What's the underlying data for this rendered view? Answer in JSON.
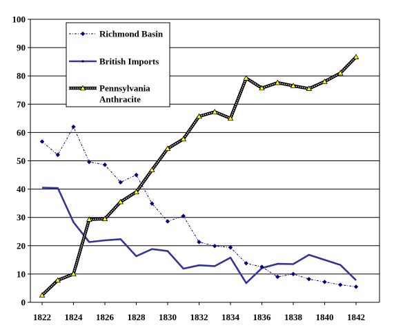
{
  "chart_data": {
    "type": "line",
    "title": "",
    "xlabel": "",
    "ylabel": "",
    "xlim": [
      1822,
      1842
    ],
    "ylim": [
      0,
      100
    ],
    "y_ticks": [
      0,
      10,
      20,
      30,
      40,
      50,
      60,
      70,
      80,
      90,
      100
    ],
    "y_tick_labels": [
      "0",
      "10",
      "20",
      "30",
      "40",
      "50",
      "60",
      "70",
      "80",
      "90",
      "100"
    ],
    "x_ticks": [
      1822,
      1824,
      1826,
      1828,
      1830,
      1832,
      1834,
      1836,
      1838,
      1840,
      1842
    ],
    "x_tick_labels": [
      "1822",
      "1824",
      "1826",
      "1828",
      "1830",
      "1832",
      "1834",
      "1836",
      "1838",
      "1840",
      "1842"
    ],
    "grid": "horizontal",
    "legend_position": "top-left",
    "x": [
      1822,
      1823,
      1824,
      1825,
      1826,
      1827,
      1828,
      1829,
      1830,
      1831,
      1832,
      1833,
      1834,
      1835,
      1836,
      1837,
      1838,
      1839,
      1840,
      1841,
      1842
    ],
    "series": [
      {
        "name": "Richmond Basin",
        "color": "#000080",
        "style": "dash-dot",
        "marker": "diamond",
        "values": [
          56.8,
          52.1,
          62.0,
          49.6,
          48.6,
          42.4,
          45.0,
          34.9,
          28.6,
          30.5,
          21.3,
          19.9,
          19.4,
          13.8,
          12.5,
          9.0,
          10.0,
          8.2,
          7.2,
          6.2,
          5.5
        ]
      },
      {
        "name": "British Imports",
        "color": "#333399",
        "style": "solid",
        "marker": "none",
        "values": [
          40.5,
          40.4,
          28.3,
          21.3,
          21.9,
          22.3,
          16.3,
          18.8,
          18.1,
          11.9,
          13.1,
          12.8,
          15.8,
          6.8,
          12.1,
          13.6,
          13.5,
          16.8,
          15.0,
          13.2,
          7.8
        ]
      },
      {
        "name": "Pennsylvania Anthracite",
        "legend_lines": [
          "Pennsylvania",
          "Anthracite"
        ],
        "color": "#000000",
        "style": "double",
        "marker": "triangle",
        "marker_color": "#ffff00",
        "values": [
          2.5,
          7.8,
          10.0,
          29.3,
          29.5,
          35.5,
          39.0,
          46.8,
          54.3,
          57.7,
          65.7,
          67.3,
          65.0,
          79.2,
          75.7,
          77.6,
          76.5,
          75.5,
          78.0,
          81.0,
          86.7
        ]
      }
    ]
  }
}
